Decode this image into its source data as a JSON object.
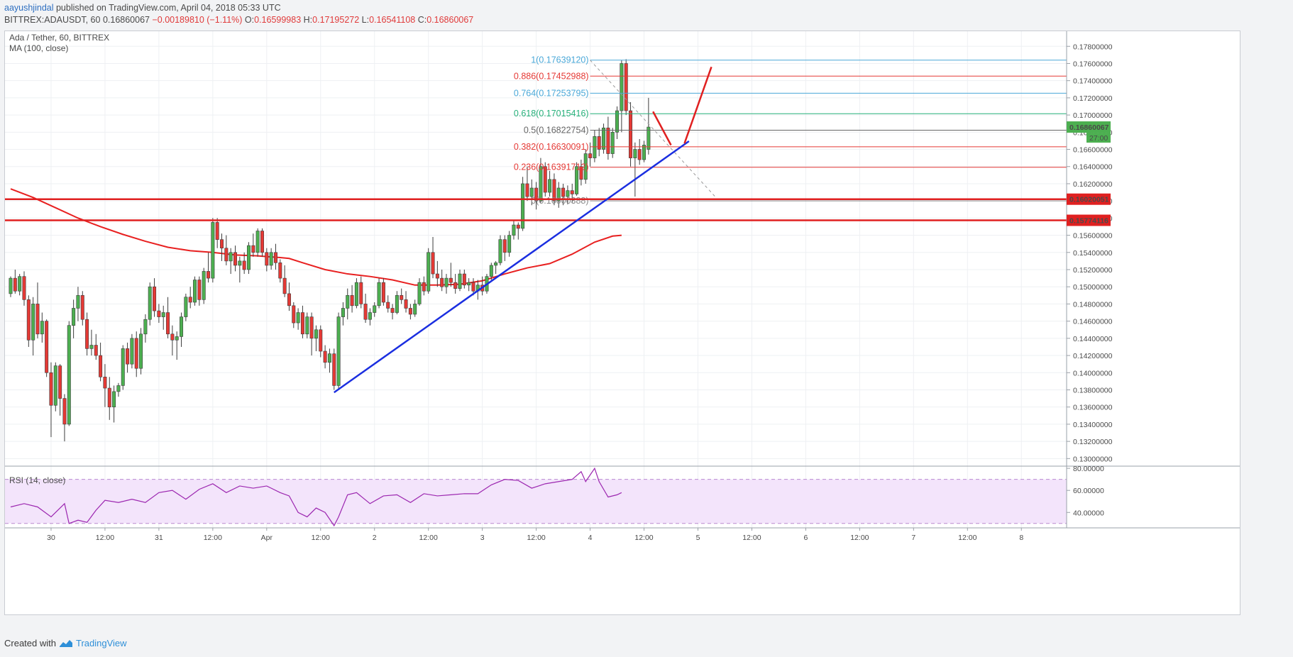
{
  "header": {
    "author": "aayushjindal",
    "published_text": " published on TradingView.com, April 04, 2018 05:33 UTC",
    "symbol": "BITTREX:ADAUSDT, 60",
    "last": "0.16860067",
    "change": "−0.00189810 (−1.11%)",
    "open_label": "O:",
    "open": "0.16599983",
    "high_label": "H:",
    "high": "0.17195272",
    "low_label": "L:",
    "low": "0.16541108",
    "close_label": "C:",
    "close": "0.16860067"
  },
  "legend": {
    "title": "Ada / Tether, 60, BITTREX",
    "ma": "MA (100, close)",
    "rsi": "RSI (14, close)"
  },
  "footer": {
    "created_with": "Created with",
    "brand": "TradingView"
  },
  "colors": {
    "up": "#4caf50",
    "down": "#e53935",
    "ma": "#e82020",
    "trend": "#1a2ee0",
    "support": "#e02020",
    "rsi": "#9c27b0",
    "rsi_band": "#f3e4fb",
    "fib_blue": "#4aa8d8",
    "fib_red": "#e53935",
    "fib_green": "#26b07a",
    "fib_gray": "#666666"
  },
  "chart_data": {
    "type": "candlestick",
    "title": "Ada / Tether, 60, BITTREX",
    "ylim": [
      0.1292,
      0.1786
    ],
    "y_ticks": [
      "0.17800000",
      "0.17600000",
      "0.17400000",
      "0.17200000",
      "0.17000000",
      "0.16800000",
      "0.16600000",
      "0.16400000",
      "0.16200000",
      "0.16000000",
      "0.15800000",
      "0.15600000",
      "0.15400000",
      "0.15200000",
      "0.15000000",
      "0.14800000",
      "0.14600000",
      "0.14400000",
      "0.14200000",
      "0.14000000",
      "0.13800000",
      "0.13600000",
      "0.13400000",
      "0.13200000",
      "0.13000000"
    ],
    "x_ticks": [
      {
        "label": "30",
        "bar": 9
      },
      {
        "label": "12:00",
        "bar": 21
      },
      {
        "label": "31",
        "bar": 33
      },
      {
        "label": "12:00",
        "bar": 45
      },
      {
        "label": "Apr",
        "bar": 57
      },
      {
        "label": "12:00",
        "bar": 69
      },
      {
        "label": "2",
        "bar": 81
      },
      {
        "label": "12:00",
        "bar": 93
      },
      {
        "label": "3",
        "bar": 105
      },
      {
        "label": "12:00",
        "bar": 117
      },
      {
        "label": "4",
        "bar": 129
      },
      {
        "label": "12:00",
        "bar": 141
      },
      {
        "label": "5",
        "bar": 153
      },
      {
        "label": "12:00",
        "bar": 165
      },
      {
        "label": "6",
        "bar": 177
      },
      {
        "label": "12:00",
        "bar": 189
      },
      {
        "label": "7",
        "bar": 201
      },
      {
        "label": "12:00",
        "bar": 213
      },
      {
        "label": "8",
        "bar": 225
      }
    ],
    "candles": [
      [
        0.1492,
        0.1512,
        0.1488,
        0.151
      ],
      [
        0.151,
        0.152,
        0.1492,
        0.1495
      ],
      [
        0.1495,
        0.1515,
        0.149,
        0.1512
      ],
      [
        0.1512,
        0.1518,
        0.1478,
        0.1485
      ],
      [
        0.1485,
        0.149,
        0.143,
        0.1438
      ],
      [
        0.1438,
        0.1488,
        0.142,
        0.148
      ],
      [
        0.148,
        0.1505,
        0.144,
        0.1445
      ],
      [
        0.1445,
        0.147,
        0.1435,
        0.146
      ],
      [
        0.146,
        0.1462,
        0.1395,
        0.14
      ],
      [
        0.14,
        0.1412,
        0.1325,
        0.1362
      ],
      [
        0.1362,
        0.1412,
        0.1355,
        0.1408
      ],
      [
        0.1408,
        0.141,
        0.135,
        0.137
      ],
      [
        0.137,
        0.1375,
        0.132,
        0.134
      ],
      [
        0.134,
        0.146,
        0.1338,
        0.1455
      ],
      [
        0.1455,
        0.1485,
        0.144,
        0.1475
      ],
      [
        0.1475,
        0.15,
        0.146,
        0.149
      ],
      [
        0.149,
        0.1495,
        0.1455,
        0.1462
      ],
      [
        0.1462,
        0.147,
        0.142,
        0.1428
      ],
      [
        0.1428,
        0.145,
        0.142,
        0.1432
      ],
      [
        0.1432,
        0.1445,
        0.1415,
        0.142
      ],
      [
        0.142,
        0.1435,
        0.139,
        0.1395
      ],
      [
        0.1395,
        0.141,
        0.136,
        0.1382
      ],
      [
        0.1382,
        0.1395,
        0.1345,
        0.136
      ],
      [
        0.136,
        0.1385,
        0.1342,
        0.1378
      ],
      [
        0.1378,
        0.1388,
        0.1372,
        0.1385
      ],
      [
        0.1385,
        0.1432,
        0.138,
        0.1428
      ],
      [
        0.1428,
        0.1435,
        0.14,
        0.141
      ],
      [
        0.141,
        0.1445,
        0.1405,
        0.144
      ],
      [
        0.144,
        0.1448,
        0.1395,
        0.1405
      ],
      [
        0.1405,
        0.1452,
        0.1398,
        0.1445
      ],
      [
        0.1445,
        0.1468,
        0.1435,
        0.1462
      ],
      [
        0.1462,
        0.1505,
        0.1455,
        0.15
      ],
      [
        0.15,
        0.151,
        0.1465,
        0.1472
      ],
      [
        0.1472,
        0.148,
        0.1458,
        0.1465
      ],
      [
        0.1465,
        0.1478,
        0.145,
        0.147
      ],
      [
        0.147,
        0.1488,
        0.144,
        0.1445
      ],
      [
        0.1445,
        0.1455,
        0.142,
        0.1438
      ],
      [
        0.1438,
        0.1448,
        0.1415,
        0.1442
      ],
      [
        0.1442,
        0.147,
        0.143,
        0.1465
      ],
      [
        0.1465,
        0.1492,
        0.146,
        0.1488
      ],
      [
        0.1488,
        0.15,
        0.1475,
        0.1482
      ],
      [
        0.1482,
        0.1512,
        0.1478,
        0.1508
      ],
      [
        0.1508,
        0.1512,
        0.1478,
        0.1485
      ],
      [
        0.1485,
        0.1522,
        0.148,
        0.1518
      ],
      [
        0.1518,
        0.154,
        0.1505,
        0.151
      ],
      [
        0.151,
        0.158,
        0.1505,
        0.1575
      ],
      [
        0.1575,
        0.158,
        0.1545,
        0.1555
      ],
      [
        0.1555,
        0.1562,
        0.153,
        0.1545
      ],
      [
        0.1545,
        0.156,
        0.1525,
        0.153
      ],
      [
        0.153,
        0.1545,
        0.1515,
        0.154
      ],
      [
        0.154,
        0.1548,
        0.1518,
        0.1525
      ],
      [
        0.1525,
        0.1535,
        0.1505,
        0.153
      ],
      [
        0.153,
        0.154,
        0.1515,
        0.152
      ],
      [
        0.152,
        0.1552,
        0.1515,
        0.1548
      ],
      [
        0.1548,
        0.1562,
        0.1535,
        0.154
      ],
      [
        0.154,
        0.1568,
        0.1535,
        0.1565
      ],
      [
        0.1565,
        0.1568,
        0.1535,
        0.154
      ],
      [
        0.154,
        0.1545,
        0.1518,
        0.1525
      ],
      [
        0.1525,
        0.1545,
        0.152,
        0.154
      ],
      [
        0.154,
        0.155,
        0.152,
        0.1528
      ],
      [
        0.1528,
        0.1532,
        0.1505,
        0.151
      ],
      [
        0.151,
        0.1525,
        0.1488,
        0.1492
      ],
      [
        0.1492,
        0.1505,
        0.1472,
        0.1478
      ],
      [
        0.1478,
        0.1482,
        0.1452,
        0.1458
      ],
      [
        0.1458,
        0.1475,
        0.145,
        0.147
      ],
      [
        0.147,
        0.1478,
        0.144,
        0.1445
      ],
      [
        0.1445,
        0.147,
        0.144,
        0.1465
      ],
      [
        0.1465,
        0.147,
        0.142,
        0.144
      ],
      [
        0.144,
        0.1455,
        0.1425,
        0.145
      ],
      [
        0.145,
        0.1455,
        0.1418,
        0.1425
      ],
      [
        0.1425,
        0.1432,
        0.1405,
        0.1412
      ],
      [
        0.1412,
        0.1428,
        0.14,
        0.1422
      ],
      [
        0.1422,
        0.1428,
        0.138,
        0.1385
      ],
      [
        0.1385,
        0.147,
        0.138,
        0.1465
      ],
      [
        0.1465,
        0.1482,
        0.1455,
        0.1475
      ],
      [
        0.1475,
        0.1498,
        0.1462,
        0.149
      ],
      [
        0.149,
        0.1502,
        0.147,
        0.1478
      ],
      [
        0.1478,
        0.151,
        0.1475,
        0.1505
      ],
      [
        0.1505,
        0.1512,
        0.1475,
        0.148
      ],
      [
        0.148,
        0.1492,
        0.1458,
        0.1462
      ],
      [
        0.1462,
        0.1475,
        0.1455,
        0.147
      ],
      [
        0.147,
        0.1482,
        0.1465,
        0.1478
      ],
      [
        0.1478,
        0.151,
        0.1475,
        0.1505
      ],
      [
        0.1505,
        0.151,
        0.1478,
        0.1482
      ],
      [
        0.1482,
        0.149,
        0.147,
        0.1475
      ],
      [
        0.1475,
        0.148,
        0.1462,
        0.147
      ],
      [
        0.147,
        0.1495,
        0.1468,
        0.149
      ],
      [
        0.149,
        0.1498,
        0.148,
        0.1485
      ],
      [
        0.1485,
        0.1495,
        0.147,
        0.1475
      ],
      [
        0.1475,
        0.148,
        0.1462,
        0.1468
      ],
      [
        0.1468,
        0.1485,
        0.1465,
        0.148
      ],
      [
        0.148,
        0.151,
        0.1478,
        0.1505
      ],
      [
        0.1505,
        0.1512,
        0.149,
        0.1495
      ],
      [
        0.1495,
        0.1545,
        0.1492,
        0.154
      ],
      [
        0.154,
        0.1558,
        0.151,
        0.1515
      ],
      [
        0.1515,
        0.153,
        0.15,
        0.151
      ],
      [
        0.151,
        0.152,
        0.1495,
        0.15
      ],
      [
        0.15,
        0.1515,
        0.1492,
        0.151
      ],
      [
        0.151,
        0.1528,
        0.15,
        0.1505
      ],
      [
        0.1505,
        0.1515,
        0.1492,
        0.1498
      ],
      [
        0.1498,
        0.152,
        0.1495,
        0.1515
      ],
      [
        0.1515,
        0.152,
        0.1498,
        0.1502
      ],
      [
        0.1502,
        0.151,
        0.1495,
        0.1505
      ],
      [
        0.1505,
        0.151,
        0.149,
        0.1495
      ],
      [
        0.1495,
        0.1508,
        0.1485,
        0.1502
      ],
      [
        0.1502,
        0.1512,
        0.149,
        0.1495
      ],
      [
        0.1495,
        0.1515,
        0.1492,
        0.1512
      ],
      [
        0.1512,
        0.1528,
        0.1508,
        0.1525
      ],
      [
        0.1525,
        0.153,
        0.1515,
        0.1528
      ],
      [
        0.1528,
        0.156,
        0.1525,
        0.1555
      ],
      [
        0.1555,
        0.156,
        0.153,
        0.154
      ],
      [
        0.154,
        0.1565,
        0.1535,
        0.156
      ],
      [
        0.156,
        0.1578,
        0.1555,
        0.1572
      ],
      [
        0.1572,
        0.1575,
        0.1555,
        0.1568
      ],
      [
        0.1568,
        0.1628,
        0.1565,
        0.162
      ],
      [
        0.162,
        0.164,
        0.16,
        0.1605
      ],
      [
        0.1605,
        0.1625,
        0.1595,
        0.1615
      ],
      [
        0.1615,
        0.1622,
        0.159,
        0.16
      ],
      [
        0.16,
        0.165,
        0.1598,
        0.164
      ],
      [
        0.164,
        0.1645,
        0.1605,
        0.161
      ],
      [
        0.161,
        0.1635,
        0.1605,
        0.1625
      ],
      [
        0.1625,
        0.1632,
        0.1595,
        0.16
      ],
      [
        0.16,
        0.1622,
        0.1592,
        0.1615
      ],
      [
        0.1615,
        0.162,
        0.1595,
        0.1605
      ],
      [
        0.1605,
        0.1618,
        0.1596,
        0.1612
      ],
      [
        0.1612,
        0.162,
        0.1598,
        0.1608
      ],
      [
        0.1608,
        0.1645,
        0.1606,
        0.164
      ],
      [
        0.164,
        0.1648,
        0.1618,
        0.1625
      ],
      [
        0.1625,
        0.166,
        0.162,
        0.1655
      ],
      [
        0.1655,
        0.1668,
        0.164,
        0.165
      ],
      [
        0.165,
        0.1682,
        0.1645,
        0.1675
      ],
      [
        0.1675,
        0.1685,
        0.1652,
        0.166
      ],
      [
        0.166,
        0.169,
        0.1655,
        0.1685
      ],
      [
        0.1685,
        0.1698,
        0.1648,
        0.1655
      ],
      [
        0.1655,
        0.1685,
        0.165,
        0.168
      ],
      [
        0.168,
        0.171,
        0.1672,
        0.1705
      ],
      [
        0.1705,
        0.1764,
        0.168,
        0.176
      ],
      [
        0.176,
        0.1765,
        0.17,
        0.1705
      ],
      [
        0.1705,
        0.1715,
        0.164,
        0.165
      ],
      [
        0.165,
        0.1668,
        0.1605,
        0.166
      ],
      [
        0.166,
        0.1672,
        0.1642,
        0.1648
      ],
      [
        0.1648,
        0.167,
        0.1645,
        0.1665
      ],
      [
        0.166,
        0.172,
        0.1654,
        0.1686
      ]
    ],
    "ma100": [
      [
        0,
        0.1614
      ],
      [
        5,
        0.1604
      ],
      [
        10,
        0.1592
      ],
      [
        15,
        0.158
      ],
      [
        20,
        0.157
      ],
      [
        25,
        0.1561
      ],
      [
        30,
        0.1553
      ],
      [
        35,
        0.1546
      ],
      [
        40,
        0.1542
      ],
      [
        45,
        0.154
      ],
      [
        50,
        0.1537
      ],
      [
        55,
        0.1536
      ],
      [
        60,
        0.1534
      ],
      [
        62,
        0.1533
      ],
      [
        65,
        0.1528
      ],
      [
        70,
        0.152
      ],
      [
        75,
        0.1515
      ],
      [
        80,
        0.1512
      ],
      [
        85,
        0.1508
      ],
      [
        90,
        0.1502
      ],
      [
        95,
        0.1502
      ],
      [
        100,
        0.1503
      ],
      [
        105,
        0.1507
      ],
      [
        110,
        0.1515
      ],
      [
        115,
        0.1522
      ],
      [
        120,
        0.1527
      ],
      [
        125,
        0.1538
      ],
      [
        130,
        0.1552
      ],
      [
        134,
        0.1559
      ],
      [
        136,
        0.156
      ]
    ],
    "rsi": [
      [
        0,
        45
      ],
      [
        3,
        48
      ],
      [
        6,
        45
      ],
      [
        9,
        36
      ],
      [
        12,
        48
      ],
      [
        13,
        30
      ],
      [
        15,
        33
      ],
      [
        17,
        31
      ],
      [
        19,
        42
      ],
      [
        21,
        51
      ],
      [
        24,
        49
      ],
      [
        27,
        52
      ],
      [
        30,
        49
      ],
      [
        33,
        58
      ],
      [
        36,
        60
      ],
      [
        39,
        52
      ],
      [
        42,
        61
      ],
      [
        45,
        66
      ],
      [
        48,
        58
      ],
      [
        51,
        64
      ],
      [
        54,
        62
      ],
      [
        57,
        64
      ],
      [
        60,
        58
      ],
      [
        62,
        55
      ],
      [
        64,
        40
      ],
      [
        66,
        36
      ],
      [
        68,
        44
      ],
      [
        70,
        40
      ],
      [
        72,
        28
      ],
      [
        73,
        36
      ],
      [
        75,
        56
      ],
      [
        77,
        58
      ],
      [
        80,
        48
      ],
      [
        83,
        55
      ],
      [
        86,
        56
      ],
      [
        89,
        49
      ],
      [
        92,
        57
      ],
      [
        95,
        55
      ],
      [
        98,
        56
      ],
      [
        101,
        57
      ],
      [
        104,
        57
      ],
      [
        107,
        65
      ],
      [
        110,
        70
      ],
      [
        113,
        69
      ],
      [
        116,
        62
      ],
      [
        119,
        66
      ],
      [
        122,
        68
      ],
      [
        125,
        70
      ],
      [
        127,
        77
      ],
      [
        128,
        68
      ],
      [
        130,
        80
      ],
      [
        131,
        68
      ],
      [
        133,
        54
      ],
      [
        135,
        56
      ],
      [
        136,
        58
      ]
    ],
    "rsi_ylim": [
      26,
      82
    ],
    "rsi_ticks": [
      "80.00000",
      "60.00000",
      "40.00000"
    ],
    "rsi_band": [
      30,
      70
    ],
    "price_labels": [
      {
        "text": "0.16860067",
        "value": 0.16860067,
        "color": "#4caf50"
      },
      {
        "text": "0.16020051",
        "value": 0.16020051,
        "color": "#e02020"
      },
      {
        "text": "0.15774116",
        "value": 0.15774116,
        "color": "#e02020"
      }
    ],
    "countdown": "27:00",
    "fib": [
      {
        "level": "1",
        "value": 0.1763912,
        "label": "1(0.17639120)",
        "color": "#4aa8d8"
      },
      {
        "level": "0.886",
        "value": 0.17452988,
        "label": "0.886(0.17452988)",
        "color": "#e53935"
      },
      {
        "level": "0.764",
        "value": 0.17253795,
        "label": "0.764(0.17253795)",
        "color": "#4aa8d8"
      },
      {
        "level": "0.618",
        "value": 0.17015416,
        "label": "0.618(0.17015416)",
        "color": "#26b07a"
      },
      {
        "level": "0.5",
        "value": 0.16822754,
        "label": "0.5(0.16822754)",
        "color": "#666666"
      },
      {
        "level": "0.382",
        "value": 0.16630091,
        "label": "0.382(0.16630091)",
        "color": "#e53935"
      },
      {
        "level": "0.236",
        "value": 0.16391712,
        "label": "0.236(0.16391712)",
        "color": "#e53935"
      },
      {
        "level": "0",
        "value": 0.16000388,
        "label": "0(0.16000388)",
        "color": "#888888"
      }
    ],
    "support_levels": [
      0.16020051,
      0.15774116
    ],
    "trendline": {
      "from": [
        72,
        0.1377
      ],
      "to": [
        151,
        0.16695
      ]
    },
    "fib_diagonal": {
      "from": [
        129,
        0.17639
      ],
      "to": [
        157,
        0.1604
      ]
    },
    "projection": [
      {
        "from": [
          143,
          0.1704
        ],
        "to": [
          147,
          0.1665
        ]
      },
      {
        "from": [
          150,
          0.1667
        ],
        "to": [
          156,
          0.1756
        ]
      }
    ]
  }
}
